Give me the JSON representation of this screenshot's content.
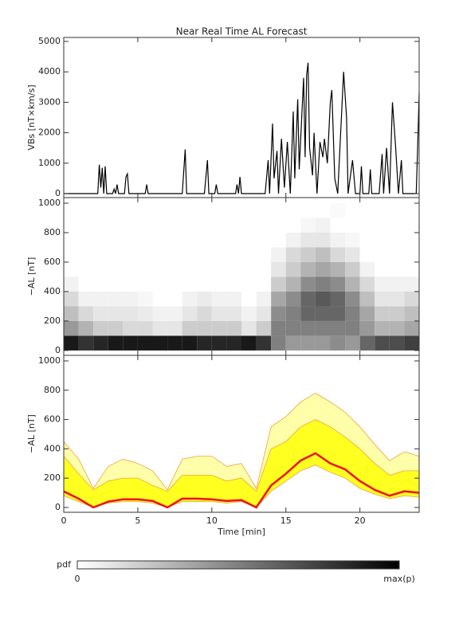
{
  "chart_data": [
    {
      "type": "line",
      "title": "Near Real Time AL Forecast",
      "y_label": "VBs [nT×km/s]",
      "xlim": [
        0,
        24
      ],
      "ylim": [
        -130,
        5130
      ],
      "yticks": [
        0,
        1000,
        2000,
        3000,
        4000,
        5000
      ],
      "color": "#000000",
      "x": [
        0,
        2.3,
        2.4,
        2.5,
        2.6,
        2.7,
        2.8,
        2.9,
        3.3,
        3.4,
        3.5,
        3.6,
        3.7,
        4.1,
        4.2,
        4.3,
        4.4,
        5.5,
        5.6,
        5.7,
        8.0,
        8.2,
        8.3,
        9.5,
        9.7,
        9.8,
        10.2,
        10.3,
        10.4,
        11.6,
        11.7,
        11.8,
        11.9,
        12.0,
        13.6,
        13.8,
        13.9,
        14.1,
        14.2,
        14.4,
        14.5,
        14.7,
        14.9,
        15.1,
        15.3,
        15.5,
        15.6,
        15.8,
        15.9,
        16.2,
        16.3,
        16.4,
        16.5,
        16.6,
        16.8,
        16.9,
        17.1,
        17.3,
        17.5,
        17.6,
        17.8,
        18.0,
        18.1,
        18.3,
        18.5,
        18.9,
        19.1,
        19.2,
        19.5,
        19.7,
        20.0,
        20.1,
        20.2,
        20.6,
        20.7,
        20.8,
        21.3,
        21.5,
        21.6,
        21.8,
        22.0,
        22.2,
        22.4,
        22.6,
        22.8,
        22.9,
        23.8,
        23.9,
        24
      ],
      "values": [
        0,
        0,
        950,
        200,
        850,
        0,
        900,
        0,
        0,
        150,
        0,
        300,
        0,
        0,
        550,
        650,
        0,
        0,
        300,
        0,
        0,
        1450,
        0,
        0,
        1100,
        0,
        0,
        300,
        0,
        0,
        300,
        0,
        550,
        0,
        0,
        1100,
        0,
        2300,
        500,
        1400,
        0,
        1800,
        200,
        1700,
        0,
        2700,
        500,
        3100,
        800,
        3800,
        1200,
        3900,
        4300,
        1500,
        600,
        2000,
        0,
        1700,
        1200,
        1800,
        1000,
        3000,
        3400,
        500,
        0,
        4000,
        2500,
        0,
        1100,
        0,
        0,
        900,
        0,
        0,
        800,
        0,
        0,
        1300,
        0,
        1500,
        0,
        3000,
        1600,
        0,
        1100,
        0,
        0,
        1500,
        3300
      ]
    },
    {
      "type": "heatmap",
      "y_label": "−AL [nT]",
      "ylim": [
        -33,
        1038
      ],
      "yticks": [
        0,
        200,
        400,
        600,
        800,
        1000
      ],
      "x_bins": [
        0,
        1,
        2,
        3,
        4,
        5,
        6,
        7,
        8,
        9,
        10,
        11,
        12,
        13,
        14,
        15,
        16,
        17,
        18,
        19,
        20,
        21,
        22,
        23,
        24
      ],
      "y_bins": [
        0,
        100,
        200,
        300,
        400,
        500,
        600,
        700,
        800,
        900,
        1000
      ],
      "z": [
        [
          0.9,
          0.8,
          0.85,
          0.9,
          0.9,
          0.9,
          0.9,
          0.9,
          0.9,
          0.85,
          0.85,
          0.85,
          0.9,
          0.8,
          0.5,
          0.4,
          0.4,
          0.4,
          0.45,
          0.4,
          0.6,
          0.7,
          0.7,
          0.75
        ],
        [
          0.4,
          0.3,
          0.2,
          0.2,
          0.15,
          0.15,
          0.1,
          0.1,
          0.2,
          0.2,
          0.2,
          0.2,
          0.1,
          0.2,
          0.5,
          0.5,
          0.5,
          0.5,
          0.5,
          0.5,
          0.4,
          0.3,
          0.3,
          0.35
        ],
        [
          0.25,
          0.15,
          0.1,
          0.1,
          0.1,
          0.08,
          0.05,
          0.05,
          0.1,
          0.15,
          0.1,
          0.1,
          0.05,
          0.1,
          0.45,
          0.5,
          0.6,
          0.6,
          0.6,
          0.5,
          0.35,
          0.2,
          0.2,
          0.25
        ],
        [
          0.15,
          0.05,
          0.05,
          0.05,
          0.05,
          0.03,
          0,
          0,
          0.05,
          0.08,
          0.05,
          0.05,
          0,
          0.05,
          0.35,
          0.45,
          0.6,
          0.65,
          0.6,
          0.45,
          0.25,
          0.1,
          0.1,
          0.15
        ],
        [
          0.05,
          0,
          0,
          0,
          0,
          0,
          0,
          0,
          0,
          0,
          0,
          0,
          0,
          0,
          0.2,
          0.3,
          0.45,
          0.5,
          0.45,
          0.3,
          0.15,
          0.05,
          0.05,
          0.05
        ],
        [
          0,
          0,
          0,
          0,
          0,
          0,
          0,
          0,
          0,
          0,
          0,
          0,
          0,
          0,
          0.1,
          0.2,
          0.3,
          0.35,
          0.3,
          0.2,
          0.05,
          0,
          0,
          0
        ],
        [
          0,
          0,
          0,
          0,
          0,
          0,
          0,
          0,
          0,
          0,
          0,
          0,
          0,
          0,
          0.05,
          0.15,
          0.2,
          0.25,
          0.15,
          0.1,
          0,
          0,
          0,
          0
        ],
        [
          0,
          0,
          0,
          0,
          0,
          0,
          0,
          0,
          0,
          0,
          0,
          0,
          0,
          0,
          0,
          0.05,
          0.1,
          0.1,
          0.05,
          0.03,
          0,
          0,
          0,
          0
        ],
        [
          0,
          0,
          0,
          0,
          0,
          0,
          0,
          0,
          0,
          0,
          0,
          0,
          0,
          0,
          0,
          0,
          0.03,
          0.05,
          0,
          0,
          0,
          0,
          0,
          0
        ],
        [
          0,
          0,
          0,
          0,
          0,
          0,
          0,
          0,
          0,
          0,
          0,
          0,
          0,
          0,
          0,
          0,
          0,
          0,
          0.02,
          0,
          0,
          0,
          0,
          0
        ]
      ],
      "colorbar": {
        "label": "pdf",
        "min_label": "0",
        "max_label": "max(p)"
      }
    },
    {
      "type": "band",
      "y_label": "−AL [nT]",
      "x_label": "Time [min]",
      "xlim": [
        0,
        24
      ],
      "xticks": [
        0,
        5,
        10,
        15,
        20
      ],
      "ylim": [
        -33,
        1038
      ],
      "yticks": [
        0,
        200,
        400,
        600,
        800,
        1000
      ],
      "x": [
        0,
        1,
        2,
        3,
        4,
        5,
        6,
        7,
        8,
        9,
        10,
        11,
        12,
        13,
        14,
        15,
        16,
        17,
        18,
        19,
        20,
        21,
        22,
        23,
        24
      ],
      "lower": [
        80,
        40,
        0,
        30,
        40,
        40,
        30,
        0,
        40,
        40,
        40,
        30,
        40,
        0,
        110,
        180,
        250,
        290,
        240,
        200,
        130,
        90,
        60,
        80,
        70
      ],
      "series": [
        {
          "color": "#ffffaa",
          "line_color": "#f0a040",
          "values": [
            450,
            330,
            130,
            280,
            330,
            300,
            250,
            120,
            330,
            350,
            350,
            280,
            300,
            130,
            550,
            620,
            720,
            780,
            720,
            650,
            550,
            430,
            320,
            380,
            350
          ]
        },
        {
          "color": "#ffff20",
          "line_color": "#f0a040",
          "values": [
            350,
            230,
            120,
            180,
            200,
            200,
            150,
            110,
            220,
            220,
            220,
            180,
            200,
            110,
            400,
            450,
            550,
            600,
            550,
            480,
            400,
            300,
            220,
            250,
            250
          ]
        },
        {
          "color": "#ee1111",
          "line_color": "#ee1111",
          "values": [
            110,
            60,
            0,
            40,
            55,
            55,
            45,
            0,
            60,
            60,
            55,
            45,
            50,
            0,
            150,
            230,
            320,
            370,
            300,
            260,
            180,
            120,
            80,
            110,
            100
          ]
        }
      ]
    }
  ]
}
